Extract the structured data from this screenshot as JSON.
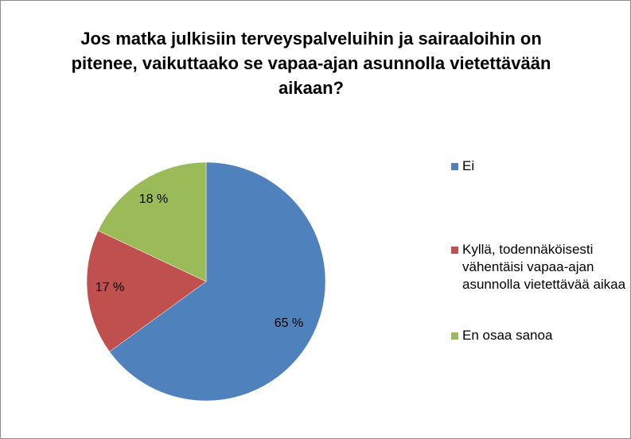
{
  "chart_data": {
    "type": "pie",
    "title": "Jos matka julkisiin terveyspalveluihin ja sairaaloihin on pitenee, vaikuttaako se vapaa-ajan asunnolla vietettävään aikaan?",
    "title_lines": [
      "Jos matka julkisiin terveyspalveluihin ja sairaaloihin on",
      "pitenee, vaikuttaako se vapaa-ajan asunnolla vietettävään",
      "aikaan?"
    ],
    "categories": [
      "Ei",
      "Kyllä, todennäköisesti vähentäisi vapaa-ajan asunnolla vietettävää aikaa",
      "En osaa sanoa"
    ],
    "values": [
      65,
      17,
      18
    ],
    "value_labels": [
      "65 %",
      "17 %",
      "18 %"
    ],
    "colors": [
      "#4f81bd",
      "#c0504d",
      "#9bbb59"
    ],
    "legend_position": "right"
  }
}
